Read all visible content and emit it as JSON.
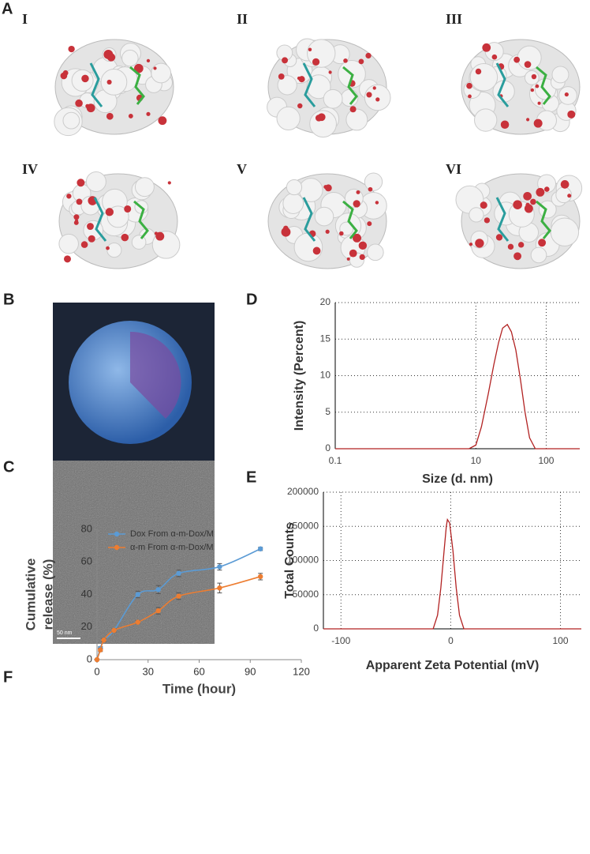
{
  "panels": {
    "labels": [
      "A",
      "B",
      "C",
      "D",
      "E",
      "F"
    ],
    "roman": [
      "I",
      "II",
      "III",
      "IV",
      "V",
      "VI"
    ],
    "scale_bar": "50 nm"
  },
  "chart_data": [
    {
      "type": "line",
      "x_label": "Size (d. nm)",
      "y_label": "Intensity (Percent)",
      "xscale": "log",
      "x": [
        0.1,
        8,
        10,
        12,
        15,
        18,
        21,
        24,
        28,
        32,
        37,
        43,
        50,
        58,
        70,
        300
      ],
      "values": [
        0,
        0,
        0.5,
        3,
        7.5,
        11.5,
        14.5,
        16.5,
        17,
        16,
        13.5,
        9.5,
        5,
        1.5,
        0,
        0
      ],
      "color": "#b22222",
      "xlim": [
        0.1,
        300
      ],
      "xticks": [
        0.1,
        10,
        100
      ],
      "ylim": [
        0,
        20
      ],
      "yticks": [
        0,
        5,
        10,
        15,
        20
      ],
      "grid": true
    },
    {
      "type": "line",
      "x_label": "Apparent Zeta Potential (mV)",
      "y_label": "Total Counts",
      "x": [
        -116,
        -16,
        -12,
        -9,
        -6,
        -4,
        -3,
        -1,
        2,
        5,
        8,
        12,
        119
      ],
      "values": [
        0,
        0,
        20000,
        60000,
        115000,
        150000,
        160000,
        155000,
        115000,
        60000,
        20000,
        0,
        0
      ],
      "color": "#b22222",
      "xlim": [
        -116,
        119
      ],
      "xticks": [
        -100,
        0,
        100
      ],
      "ylim": [
        0,
        200000
      ],
      "yticks": [
        0,
        50000,
        100000,
        150000,
        200000
      ],
      "grid": true
    },
    {
      "type": "errorline",
      "x_label": "Time (hour)",
      "y_label": [
        "Cumulative",
        "release (%)"
      ],
      "x": [
        0,
        2,
        4,
        10,
        24,
        36,
        48,
        72,
        96
      ],
      "series": [
        {
          "name": "Dox From α-m-Dox/M",
          "color": "#5b9bd5",
          "values": [
            0,
            7,
            12,
            18,
            40,
            43,
            53,
            57,
            68
          ],
          "errors": [
            0,
            1,
            1,
            1,
            2,
            2.5,
            2,
            2,
            1
          ]
        },
        {
          "name": "α-m From α-m-Dox/M",
          "color": "#ed7d31",
          "values": [
            0,
            6,
            12,
            18,
            23,
            30,
            39,
            44,
            51
          ],
          "errors": [
            0,
            1,
            1,
            1,
            1,
            2,
            2,
            3,
            2
          ]
        }
      ],
      "xlim": [
        0,
        120
      ],
      "xticks": [
        0,
        30,
        60,
        90,
        120
      ],
      "ylim": [
        0,
        80
      ],
      "yticks": [
        0,
        20,
        40,
        60,
        80
      ],
      "grid": false,
      "legend": "top-left"
    }
  ]
}
